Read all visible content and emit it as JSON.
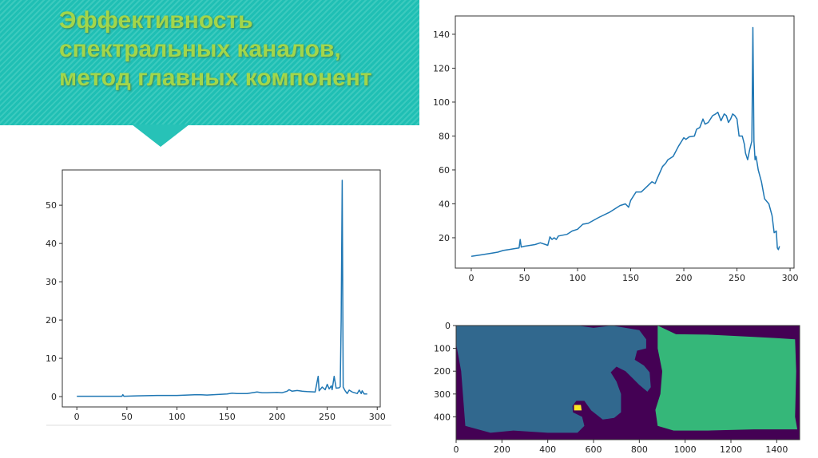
{
  "slide": {
    "title": "Эффективность\nспектральных каналов,\nметод главных компонент",
    "header_color": "#1fbfb4",
    "title_color": "#a3d64a"
  },
  "chart_data": [
    {
      "type": "line",
      "xlim": [
        -14.5,
        303
      ],
      "ylim": [
        -2.7,
        59.2
      ],
      "xticks": [
        0,
        50,
        100,
        150,
        200,
        250,
        300
      ],
      "yticks": [
        0,
        10,
        20,
        30,
        40,
        50
      ],
      "grid": false,
      "color": "#1f77b4",
      "x": [
        0,
        10,
        20,
        30,
        40,
        45,
        46,
        47,
        60,
        80,
        100,
        120,
        130,
        150,
        155,
        160,
        170,
        175,
        180,
        185,
        190,
        200,
        205,
        210,
        212,
        215,
        220,
        225,
        230,
        238,
        241,
        242,
        245,
        248,
        250,
        252,
        254,
        255,
        257,
        259,
        262,
        263,
        264,
        265,
        266,
        268,
        270,
        272,
        275,
        280,
        282,
        284,
        285,
        287,
        290
      ],
      "y": [
        0.1,
        0.1,
        0.1,
        0.1,
        0.1,
        0.1,
        0.5,
        0.1,
        0.2,
        0.3,
        0.3,
        0.5,
        0.4,
        0.7,
        0.9,
        0.8,
        0.8,
        1.0,
        1.2,
        1.0,
        1.0,
        1.1,
        1.0,
        1.4,
        1.8,
        1.4,
        1.6,
        1.4,
        1.3,
        1.2,
        5.3,
        1.5,
        2.5,
        1.8,
        3.2,
        2.0,
        2.8,
        1.8,
        5.3,
        2.2,
        2.3,
        2.6,
        20,
        56.5,
        2.5,
        1.5,
        0.8,
        1.7,
        1.2,
        0.8,
        1.7,
        0.8,
        1.5,
        0.7,
        0.7
      ]
    },
    {
      "type": "line",
      "xlim": [
        -15,
        303.7
      ],
      "ylim": [
        2.1,
        150.8
      ],
      "xticks": [
        0,
        50,
        100,
        150,
        200,
        250,
        300
      ],
      "yticks": [
        20,
        40,
        60,
        80,
        100,
        120,
        140
      ],
      "grid": false,
      "color": "#1f77b4",
      "x": [
        0,
        10,
        20,
        25,
        30,
        40,
        45,
        46,
        47,
        50,
        60,
        65,
        70,
        72,
        74,
        76,
        78,
        80,
        82,
        90,
        95,
        100,
        105,
        110,
        120,
        130,
        140,
        145,
        148,
        150,
        155,
        160,
        165,
        170,
        173,
        175,
        180,
        183,
        185,
        190,
        195,
        200,
        202,
        205,
        210,
        212,
        215,
        218,
        220,
        223,
        227,
        230,
        232,
        235,
        238,
        240,
        242,
        244,
        246,
        248,
        250,
        252,
        255,
        257,
        258,
        260,
        262,
        264,
        265,
        266,
        267,
        268,
        270,
        273,
        276,
        280,
        283,
        285,
        287,
        288,
        289,
        290
      ],
      "y": [
        9,
        10,
        11,
        11.5,
        12.5,
        13.5,
        14,
        19,
        14.5,
        15,
        16,
        17,
        16,
        15.5,
        20.5,
        19,
        20,
        19,
        21,
        22,
        24,
        25,
        28,
        28.5,
        32,
        35,
        39,
        40,
        38,
        42,
        47,
        47,
        50,
        53,
        52,
        55,
        62,
        64,
        66,
        68,
        74,
        79,
        78,
        79.5,
        80,
        84,
        85,
        90,
        87,
        88,
        92,
        93,
        94,
        89,
        93,
        92,
        88,
        90,
        93,
        92,
        90,
        80,
        80,
        75,
        70,
        66,
        72,
        77,
        144,
        77,
        66,
        68,
        60,
        53,
        43,
        40,
        33,
        23,
        24,
        14,
        13,
        15
      ]
    },
    {
      "type": "heatmap",
      "xlim": [
        0,
        1500
      ],
      "ylim": [
        500,
        0
      ],
      "xticks": [
        0,
        200,
        400,
        600,
        800,
        1000,
        1200,
        1400
      ],
      "yticks": [
        0,
        100,
        200,
        300,
        400
      ],
      "colormap": "viridis",
      "background_color": "#440154",
      "regions": [
        {
          "label": 1,
          "color": "#31688e",
          "outline": [
            [
              0,
              0
            ],
            [
              530,
              0
            ],
            [
              600,
              10
            ],
            [
              680,
              0
            ],
            [
              800,
              20
            ],
            [
              830,
              60
            ],
            [
              830,
              100
            ],
            [
              790,
              110
            ],
            [
              780,
              150
            ],
            [
              820,
              175
            ],
            [
              845,
              205
            ],
            [
              850,
              270
            ],
            [
              835,
              290
            ],
            [
              800,
              260
            ],
            [
              770,
              230
            ],
            [
              740,
              200
            ],
            [
              700,
              180
            ],
            [
              675,
              205
            ],
            [
              700,
              245
            ],
            [
              720,
              300
            ],
            [
              720,
              380
            ],
            [
              690,
              405
            ],
            [
              640,
              412
            ],
            [
              590,
              372
            ],
            [
              560,
              330
            ],
            [
              525,
              330
            ],
            [
              508,
              352
            ],
            [
              510,
              380
            ],
            [
              550,
              400
            ],
            [
              560,
              440
            ],
            [
              530,
              470
            ],
            [
              400,
              470
            ],
            [
              250,
              460
            ],
            [
              150,
              470
            ],
            [
              40,
              440
            ],
            [
              22,
              200
            ],
            [
              0,
              80
            ]
          ]
        },
        {
          "label": 2,
          "color": "#35b779",
          "outline": [
            [
              880,
              0
            ],
            [
              960,
              38
            ],
            [
              1100,
              40
            ],
            [
              1300,
              50
            ],
            [
              1400,
              55
            ],
            [
              1480,
              60
            ],
            [
              1485,
              200
            ],
            [
              1480,
              400
            ],
            [
              1490,
              455
            ],
            [
              1300,
              455
            ],
            [
              1100,
              460
            ],
            [
              950,
              460
            ],
            [
              880,
              440
            ],
            [
              870,
              370
            ],
            [
              892,
              300
            ],
            [
              900,
              200
            ],
            [
              880,
              100
            ]
          ]
        },
        {
          "label": 3,
          "color": "#fde725",
          "outline": [
            [
              515,
              348
            ],
            [
              545,
              348
            ],
            [
              548,
              372
            ],
            [
              515,
              372
            ]
          ]
        }
      ]
    }
  ]
}
